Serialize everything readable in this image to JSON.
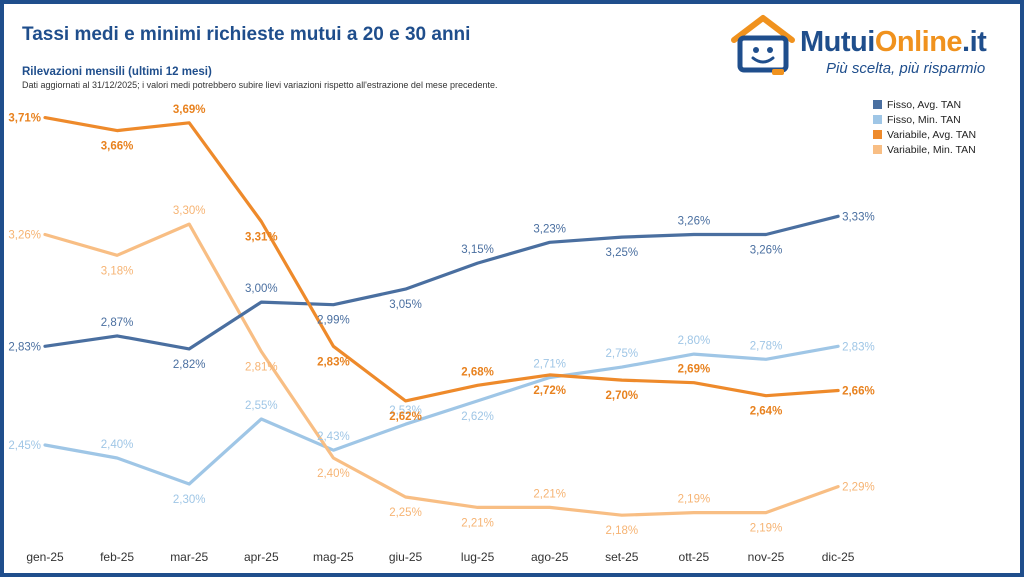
{
  "header": {
    "title": "Tassi medi e minimi richieste mutui a 20 e 30 anni",
    "subtitle": "Rilevazioni mensili (ultimi 12 mesi)",
    "note": "Dati aggiornati al 31/12/2025; i valori medi potrebbero subire lievi variazioni rispetto all'estrazione del mese precedente."
  },
  "brand": {
    "name_part1": "Mutui",
    "name_part2": "Online",
    "name_part3": ".it",
    "tagline": "Più scelta, più risparmio",
    "icon": "house-monitor-smiley-icon"
  },
  "colors": {
    "brand_blue": "#1f4e8c",
    "brand_orange": "#f0921e"
  },
  "chart_data": {
    "type": "line",
    "categories": [
      "gen-25",
      "feb-25",
      "mar-25",
      "apr-25",
      "mag-25",
      "giu-25",
      "lug-25",
      "ago-25",
      "set-25",
      "ott-25",
      "nov-25",
      "dic-25"
    ],
    "series": [
      {
        "name": "Fisso, Avg. TAN",
        "color": "#4a6fa0",
        "values": [
          2.83,
          2.87,
          2.82,
          3.0,
          2.99,
          3.05,
          3.15,
          3.23,
          3.25,
          3.26,
          3.26,
          3.33
        ],
        "labels": [
          "2,83%",
          "2,87%",
          "2,82%",
          "3,00%",
          "2,99%",
          "3,05%",
          "3,15%",
          "3,23%",
          "3,25%",
          "3,26%",
          "3,26%",
          "3,33%"
        ]
      },
      {
        "name": "Fisso, Min. TAN",
        "color": "#9fc6e6",
        "values": [
          2.45,
          2.4,
          2.3,
          2.55,
          2.43,
          2.53,
          2.62,
          2.71,
          2.75,
          2.8,
          2.78,
          2.83
        ],
        "labels": [
          "2,45%",
          "2,40%",
          "2,30%",
          "2,55%",
          "2,43%",
          "2,53%",
          "2,62%",
          "2,71%",
          "2,75%",
          "2,80%",
          "2,78%",
          "2,83%"
        ]
      },
      {
        "name": "Variabile, Avg. TAN",
        "color": "#ee8a2b",
        "values": [
          3.71,
          3.66,
          3.69,
          3.31,
          2.83,
          2.62,
          2.68,
          2.72,
          2.7,
          2.69,
          2.64,
          2.66
        ],
        "labels": [
          "3,71%",
          "3,66%",
          "3,69%",
          "3,31%",
          "2,83%",
          "2,62%",
          "2,68%",
          "2,72%",
          "2,70%",
          "2,69%",
          "2,64%",
          "2,66%"
        ]
      },
      {
        "name": "Variabile, Min. TAN",
        "color": "#f8be84",
        "values": [
          3.26,
          3.18,
          3.3,
          2.81,
          2.4,
          2.25,
          2.21,
          2.21,
          2.18,
          2.19,
          2.19,
          2.29
        ],
        "labels": [
          "3,26%",
          "3,18%",
          "3,30%",
          "2,81%",
          "2,40%",
          "2,25%",
          "2,21%",
          "2,21%",
          "2,18%",
          "2,19%",
          "2,19%",
          "2,29%"
        ]
      }
    ],
    "legend_position": "top-right",
    "grid": false,
    "ylim": [
      2.1,
      3.75
    ]
  }
}
